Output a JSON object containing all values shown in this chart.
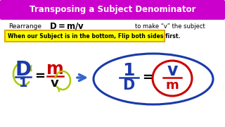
{
  "title": "Transposing a Subject Denominator",
  "title_bg": "#cc00cc",
  "title_color": "#ffffff",
  "rearrange_text": "Rearrange",
  "formula_bold": "D = m/v",
  "make_subject": "to make “v” the subject",
  "hint_text": "When our Subject is in the bottom, Flip both sides first.",
  "hint_bg": "#ffff00",
  "hint_border": "#ddaa00",
  "bg_color": "#ffffff",
  "blue": "#1a3aaa",
  "red": "#cc0000",
  "green_arrow": "#aacc00",
  "dark_blue_ellipse": "#1a3aaa",
  "red_ellipse": "#cc0000",
  "arrow_blue": "#3366cc"
}
